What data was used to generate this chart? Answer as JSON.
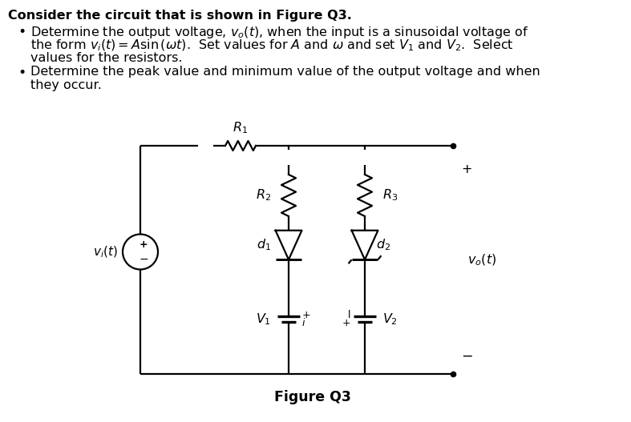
{
  "background_color": "#ffffff",
  "text_color": "#000000",
  "title_line": "Consider the circuit that is shown in Figure Q3.",
  "bullet1_line1": "Determine the output voltage, $v_o(t)$, when the input is a sinusoidal voltage of",
  "bullet1_line2": "the form $v_i(t) = A\\mathrm{sin}\\,(\\omega t)$.  Set values for $A$ and $\\omega$ and set $V_1$ and $V_2$.  Select",
  "bullet1_line3": "values for the resistors.",
  "bullet2_line1": "Determine the peak value and minimum value of the output voltage and when",
  "bullet2_line2": "they occur.",
  "figure_label": "Figure Q3",
  "font_size": 11.5
}
